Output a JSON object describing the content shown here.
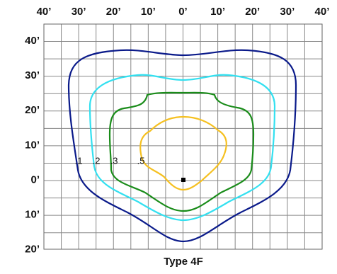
{
  "top_labels": [
    "40’",
    "30’",
    "20’",
    "10’",
    "0’",
    "10’",
    "20’",
    "30’",
    "40’"
  ],
  "left_labels": [
    "40’",
    "30’",
    "20’",
    "10’",
    "0’",
    "10’",
    "20’"
  ],
  "levels": [
    ".1",
    ".2",
    ".3",
    ".5"
  ],
  "title": "Type 4F"
}
